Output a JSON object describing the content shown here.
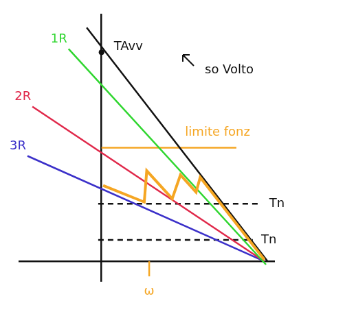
{
  "chart_data": {
    "type": "line",
    "xlim": [
      -50,
      105
    ],
    "ylim": [
      -12,
      150
    ],
    "tick_labels": false,
    "grid": false,
    "series": [
      {
        "name": "1R",
        "color": "#2fd62f",
        "x": [
          -20,
          100
        ],
        "values": [
          129,
          -2
        ]
      },
      {
        "name": "2R",
        "color": "#e0284a",
        "x": [
          -42,
          99
        ],
        "values": [
          94,
          0
        ]
      },
      {
        "name": "3R",
        "color": "#3b30c9",
        "x": [
          -45,
          99
        ],
        "values": [
          64,
          0
        ]
      },
      {
        "color": "#111111",
        "x": [
          -9,
          101
        ],
        "values": [
          142,
          0
        ]
      },
      {
        "name": "limite fonz",
        "color": "#f5a623",
        "x": [
          0,
          82
        ],
        "values": [
          69,
          69
        ]
      },
      {
        "name": "Tn",
        "color": "#111111",
        "line_style": "dashed",
        "x": [
          -2,
          97
        ],
        "values": [
          35,
          35
        ]
      },
      {
        "name": "Tn",
        "color": "#111111",
        "line_style": "dashed",
        "x": [
          -2,
          92
        ],
        "values": [
          13,
          13
        ]
      },
      {
        "color": "#f5a623",
        "x": [
          1,
          26,
          27.5,
          43,
          48,
          57.5,
          60,
          99
        ],
        "values": [
          46,
          36,
          55,
          38,
          52.5,
          42,
          51,
          1
        ]
      }
    ],
    "annotations": [
      {
        "text": "TAvv",
        "x": 0,
        "y": 127,
        "marker": "dot",
        "color": "#111111"
      },
      {
        "text": "so Volto",
        "color": "#111111"
      },
      {
        "text": "ω",
        "x": 29,
        "color": "#f5a623"
      }
    ]
  }
}
